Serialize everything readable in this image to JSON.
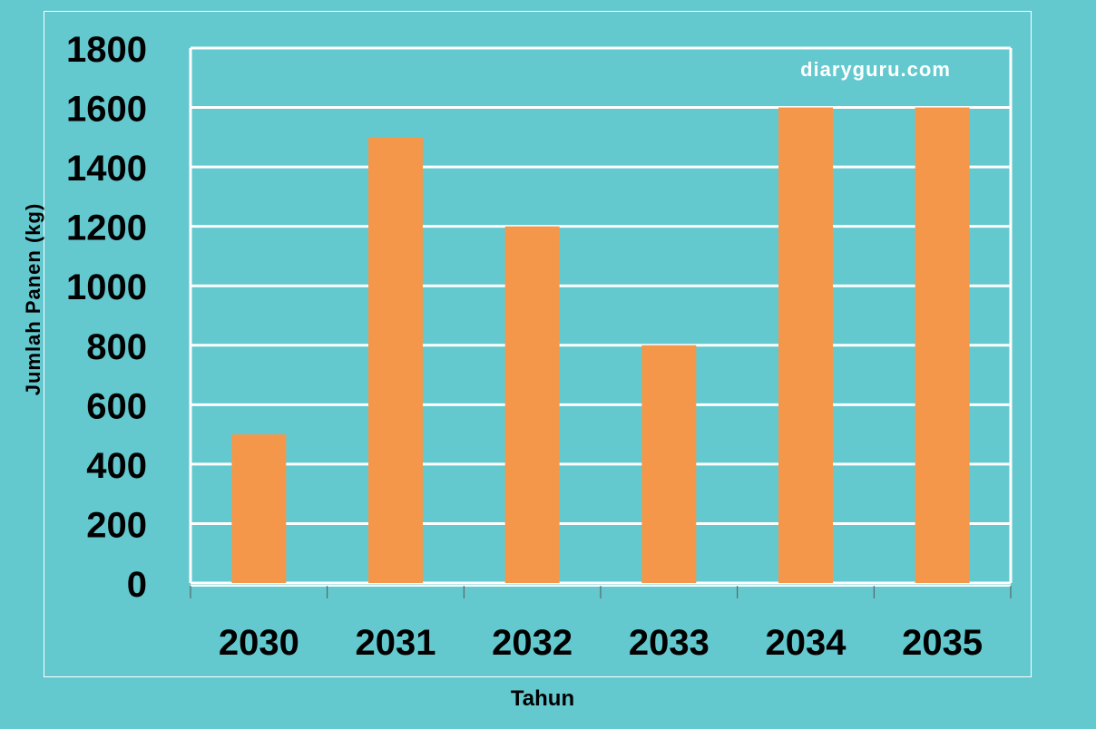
{
  "chart_data": {
    "type": "bar",
    "title": "",
    "xlabel": "Tahun",
    "ylabel": "Jumlah Panen (kg)",
    "categories": [
      "2030",
      "2031",
      "2032",
      "2033",
      "2034",
      "2035"
    ],
    "values": [
      500,
      1500,
      1200,
      800,
      1600,
      1600
    ],
    "ylim": [
      0,
      1800
    ],
    "yticks": [
      "0",
      "200",
      "400",
      "600",
      "800",
      "1000",
      "1200",
      "1400",
      "1600",
      "1800"
    ],
    "grid": true,
    "legend": "none",
    "watermark": "diaryguru.com",
    "colors": {
      "background": "#63c9cf",
      "bar": "#f5974a",
      "grid": "#ffffff",
      "text": "#000000",
      "watermark": "#ffffff"
    }
  }
}
